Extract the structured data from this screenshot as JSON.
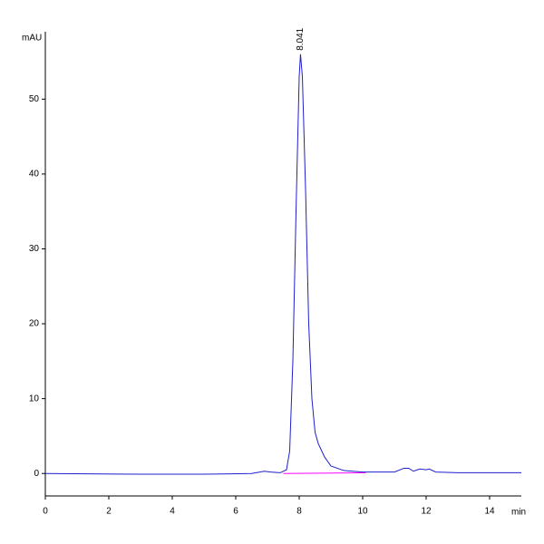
{
  "chart_data": {
    "type": "line",
    "y_label": "mAU",
    "x_label": "min",
    "xlim": [
      0,
      15
    ],
    "ylim": [
      -3,
      59
    ],
    "xticks": [
      0,
      2,
      4,
      6,
      8,
      10,
      12,
      14
    ],
    "yticks": [
      0,
      10,
      20,
      30,
      40,
      50
    ],
    "series": [
      {
        "color": "#1f1fd0",
        "x": [
          0,
          3,
          5,
          6.5,
          6.9,
          7.1,
          7.4,
          7.6,
          7.7,
          7.8,
          7.9,
          8.0,
          8.041,
          8.1,
          8.2,
          8.3,
          8.4,
          8.5,
          8.6,
          8.8,
          9.0,
          9.4,
          10,
          11,
          11.3,
          11.45,
          11.6,
          11.8,
          12.0,
          12.1,
          12.3,
          13,
          15
        ],
        "values": [
          0,
          -0.1,
          -0.1,
          0,
          0.3,
          0.2,
          0.1,
          0.5,
          3,
          15,
          35,
          53,
          56,
          53,
          38,
          20,
          10,
          5.5,
          4,
          2.2,
          1,
          0.4,
          0.2,
          0.2,
          0.7,
          0.7,
          0.3,
          0.6,
          0.5,
          0.6,
          0.2,
          0.1,
          0.1
        ]
      },
      {
        "color": "#ff00ff",
        "x": [
          7.5,
          10.1
        ],
        "values": [
          0,
          0.1
        ]
      }
    ],
    "annotations": [
      {
        "text": "8.041",
        "x": 8.041,
        "y": 56
      }
    ]
  }
}
